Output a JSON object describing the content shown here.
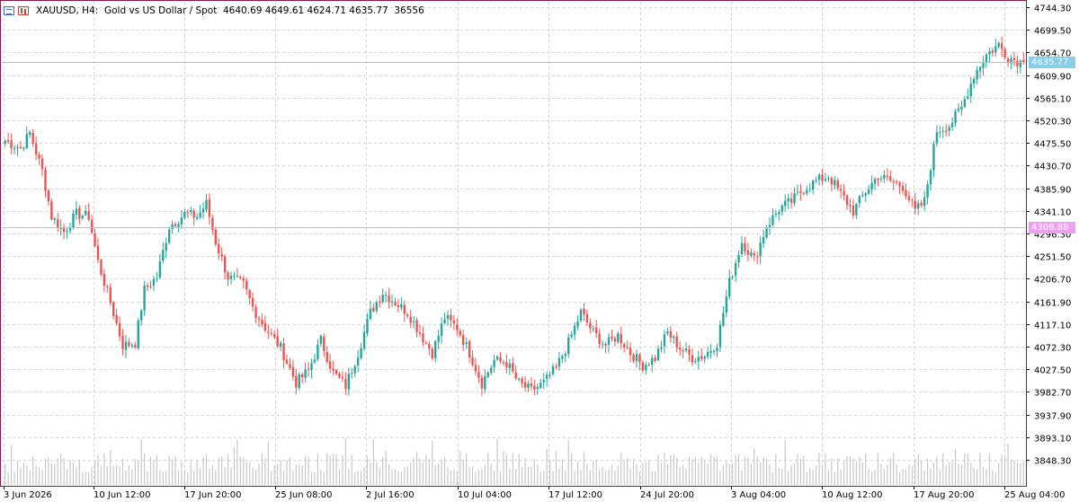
{
  "header": {
    "title": "XAUUSD, H4:  Gold vs US Dollar / Spot  4640.69 4649.61 4624.71 4635.77  36556"
  },
  "colors": {
    "bull": "#26a69a",
    "bear": "#ef5350",
    "bid_line": "#87ceeb",
    "level_line": "#f0a0f0",
    "border": "#8b1a4a",
    "grid": "#d4d4d4",
    "volume": "#c8c8c8"
  },
  "price_tags": {
    "current": "4635.77",
    "level": "4308.88"
  },
  "chart_data": {
    "type": "candlestick",
    "symbol": "XAUUSD",
    "timeframe": "H4",
    "y_ticks": [
      "4744.30",
      "4699.50",
      "4654.70",
      "4609.90",
      "4565.10",
      "4520.30",
      "4475.50",
      "4430.70",
      "4385.90",
      "4341.10",
      "4296.30",
      "4251.50",
      "4206.70",
      "4161.90",
      "4117.10",
      "4072.30",
      "4027.50",
      "3982.70",
      "3937.90",
      "3893.10",
      "3848.30"
    ],
    "x_ticks": [
      "3 Jun 2026",
      "10 Jun 12:00",
      "17 Jun 20:00",
      "25 Jun 08:00",
      "2 Jul 16:00",
      "10 Jul 04:00",
      "17 Jul 12:00",
      "24 Jul 20:00",
      "3 Aug 04:00",
      "10 Aug 12:00",
      "17 Aug 20:00",
      "25 Aug 04:00"
    ],
    "ylim": [
      3829,
      4747
    ],
    "horizontal_lines": [
      4635.77,
      4308.88
    ],
    "key_points": [
      {
        "i": 0,
        "c": 4480
      },
      {
        "i": 5,
        "c": 4465
      },
      {
        "i": 8,
        "c": 4495
      },
      {
        "i": 12,
        "c": 4420
      },
      {
        "i": 15,
        "c": 4330
      },
      {
        "i": 19,
        "c": 4300
      },
      {
        "i": 23,
        "c": 4335
      },
      {
        "i": 27,
        "c": 4330
      },
      {
        "i": 30,
        "c": 4240
      },
      {
        "i": 34,
        "c": 4160
      },
      {
        "i": 38,
        "c": 4075
      },
      {
        "i": 42,
        "c": 4080
      },
      {
        "i": 45,
        "c": 4185
      },
      {
        "i": 49,
        "c": 4210
      },
      {
        "i": 53,
        "c": 4310
      },
      {
        "i": 58,
        "c": 4335
      },
      {
        "i": 62,
        "c": 4330
      },
      {
        "i": 65,
        "c": 4355
      },
      {
        "i": 68,
        "c": 4280
      },
      {
        "i": 72,
        "c": 4210
      },
      {
        "i": 77,
        "c": 4195
      },
      {
        "i": 80,
        "c": 4150
      },
      {
        "i": 84,
        "c": 4110
      },
      {
        "i": 89,
        "c": 4070
      },
      {
        "i": 94,
        "c": 4000
      },
      {
        "i": 98,
        "c": 4025
      },
      {
        "i": 102,
        "c": 4085
      },
      {
        "i": 106,
        "c": 4020
      },
      {
        "i": 110,
        "c": 3995
      },
      {
        "i": 114,
        "c": 4060
      },
      {
        "i": 118,
        "c": 4140
      },
      {
        "i": 122,
        "c": 4180
      },
      {
        "i": 126,
        "c": 4160
      },
      {
        "i": 130,
        "c": 4140
      },
      {
        "i": 134,
        "c": 4100
      },
      {
        "i": 138,
        "c": 4060
      },
      {
        "i": 142,
        "c": 4130
      },
      {
        "i": 146,
        "c": 4110
      },
      {
        "i": 150,
        "c": 4060
      },
      {
        "i": 154,
        "c": 4000
      },
      {
        "i": 158,
        "c": 4045
      },
      {
        "i": 162,
        "c": 4040
      },
      {
        "i": 166,
        "c": 4000
      },
      {
        "i": 170,
        "c": 3985
      },
      {
        "i": 174,
        "c": 4000
      },
      {
        "i": 178,
        "c": 4030
      },
      {
        "i": 182,
        "c": 4080
      },
      {
        "i": 186,
        "c": 4140
      },
      {
        "i": 190,
        "c": 4100
      },
      {
        "i": 194,
        "c": 4075
      },
      {
        "i": 198,
        "c": 4095
      },
      {
        "i": 202,
        "c": 4060
      },
      {
        "i": 206,
        "c": 4035
      },
      {
        "i": 210,
        "c": 4050
      },
      {
        "i": 214,
        "c": 4100
      },
      {
        "i": 218,
        "c": 4070
      },
      {
        "i": 222,
        "c": 4050
      },
      {
        "i": 226,
        "c": 4055
      },
      {
        "i": 230,
        "c": 4080
      },
      {
        "i": 234,
        "c": 4200
      },
      {
        "i": 238,
        "c": 4280
      },
      {
        "i": 242,
        "c": 4245
      },
      {
        "i": 246,
        "c": 4310
      },
      {
        "i": 250,
        "c": 4345
      },
      {
        "i": 254,
        "c": 4360
      },
      {
        "i": 258,
        "c": 4385
      },
      {
        "i": 262,
        "c": 4400
      },
      {
        "i": 266,
        "c": 4410
      },
      {
        "i": 270,
        "c": 4375
      },
      {
        "i": 274,
        "c": 4340
      },
      {
        "i": 278,
        "c": 4380
      },
      {
        "i": 282,
        "c": 4410
      },
      {
        "i": 286,
        "c": 4400
      },
      {
        "i": 290,
        "c": 4390
      },
      {
        "i": 294,
        "c": 4340
      },
      {
        "i": 297,
        "c": 4360
      },
      {
        "i": 301,
        "c": 4500
      },
      {
        "i": 305,
        "c": 4510
      },
      {
        "i": 309,
        "c": 4545
      },
      {
        "i": 313,
        "c": 4610
      },
      {
        "i": 317,
        "c": 4650
      },
      {
        "i": 321,
        "c": 4670
      },
      {
        "i": 324,
        "c": 4645
      },
      {
        "i": 328,
        "c": 4636
      }
    ],
    "count": 330
  }
}
